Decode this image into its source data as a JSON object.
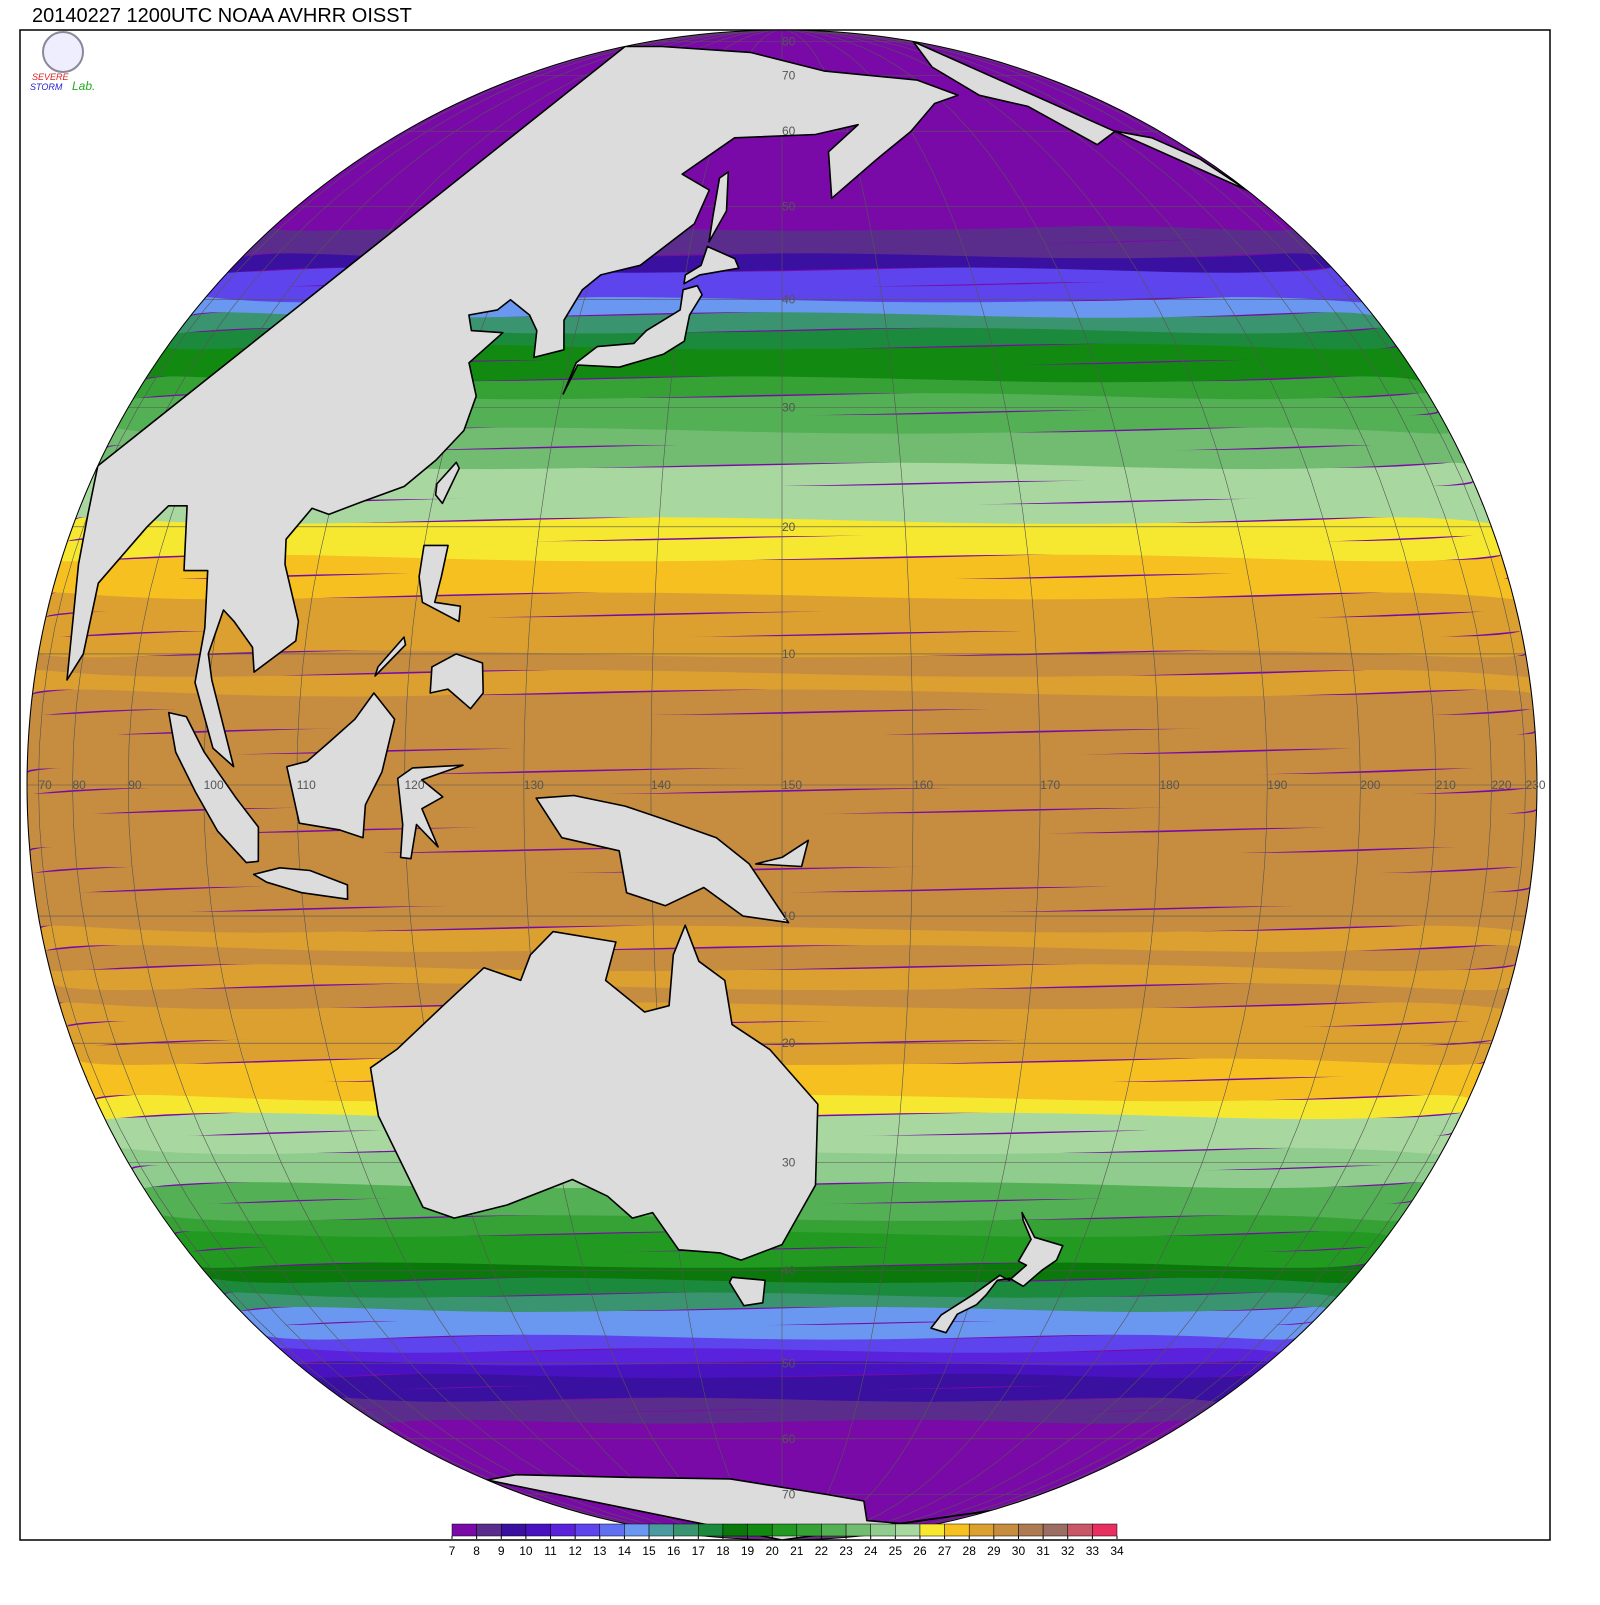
{
  "title": "20140227 1200UTC NOAA AVHRR OISST",
  "logo": {
    "line1": "SEVERE",
    "line2": "STORM",
    "line3": "Lab."
  },
  "map": {
    "center_lon": 150,
    "center_lat": 0,
    "meridian_labels": [
      70,
      80,
      90,
      100,
      110,
      120,
      130,
      140,
      150,
      160,
      170,
      180,
      190,
      200,
      210,
      220,
      230
    ],
    "parallel_labels": [
      80,
      70,
      60,
      50,
      40,
      30,
      20,
      10,
      {
        "value": -10,
        "label": "10"
      },
      {
        "value": -20,
        "label": "20"
      },
      {
        "value": -30,
        "label": "30"
      },
      {
        "value": -40,
        "label": "40"
      },
      {
        "value": -50,
        "label": "50"
      },
      {
        "value": -60,
        "label": "60"
      },
      {
        "value": -70,
        "label": "70"
      }
    ]
  },
  "colorbar": {
    "ticks": [
      7,
      8,
      9,
      10,
      11,
      12,
      13,
      14,
      15,
      16,
      17,
      18,
      19,
      20,
      21,
      22,
      23,
      24,
      25,
      26,
      27,
      28,
      29,
      30,
      31,
      32,
      33,
      34
    ],
    "colors": [
      "#7a0aa8",
      "#5a2d8c",
      "#3a10a0",
      "#4812c0",
      "#5a22dc",
      "#5e44ec",
      "#6070f0",
      "#6a98f0",
      "#4a9aa0",
      "#3a9470",
      "#1c8a3c",
      "#0a780a",
      "#128a12",
      "#229a22",
      "#36a236",
      "#54b054",
      "#72bc72",
      "#90cc8e",
      "#a8d8a0",
      "#f6e830",
      "#f6c020",
      "#dca030",
      "#c68c40",
      "#ae7a52",
      "#9a6e62",
      "#c85868",
      "#e83060"
    ]
  }
}
